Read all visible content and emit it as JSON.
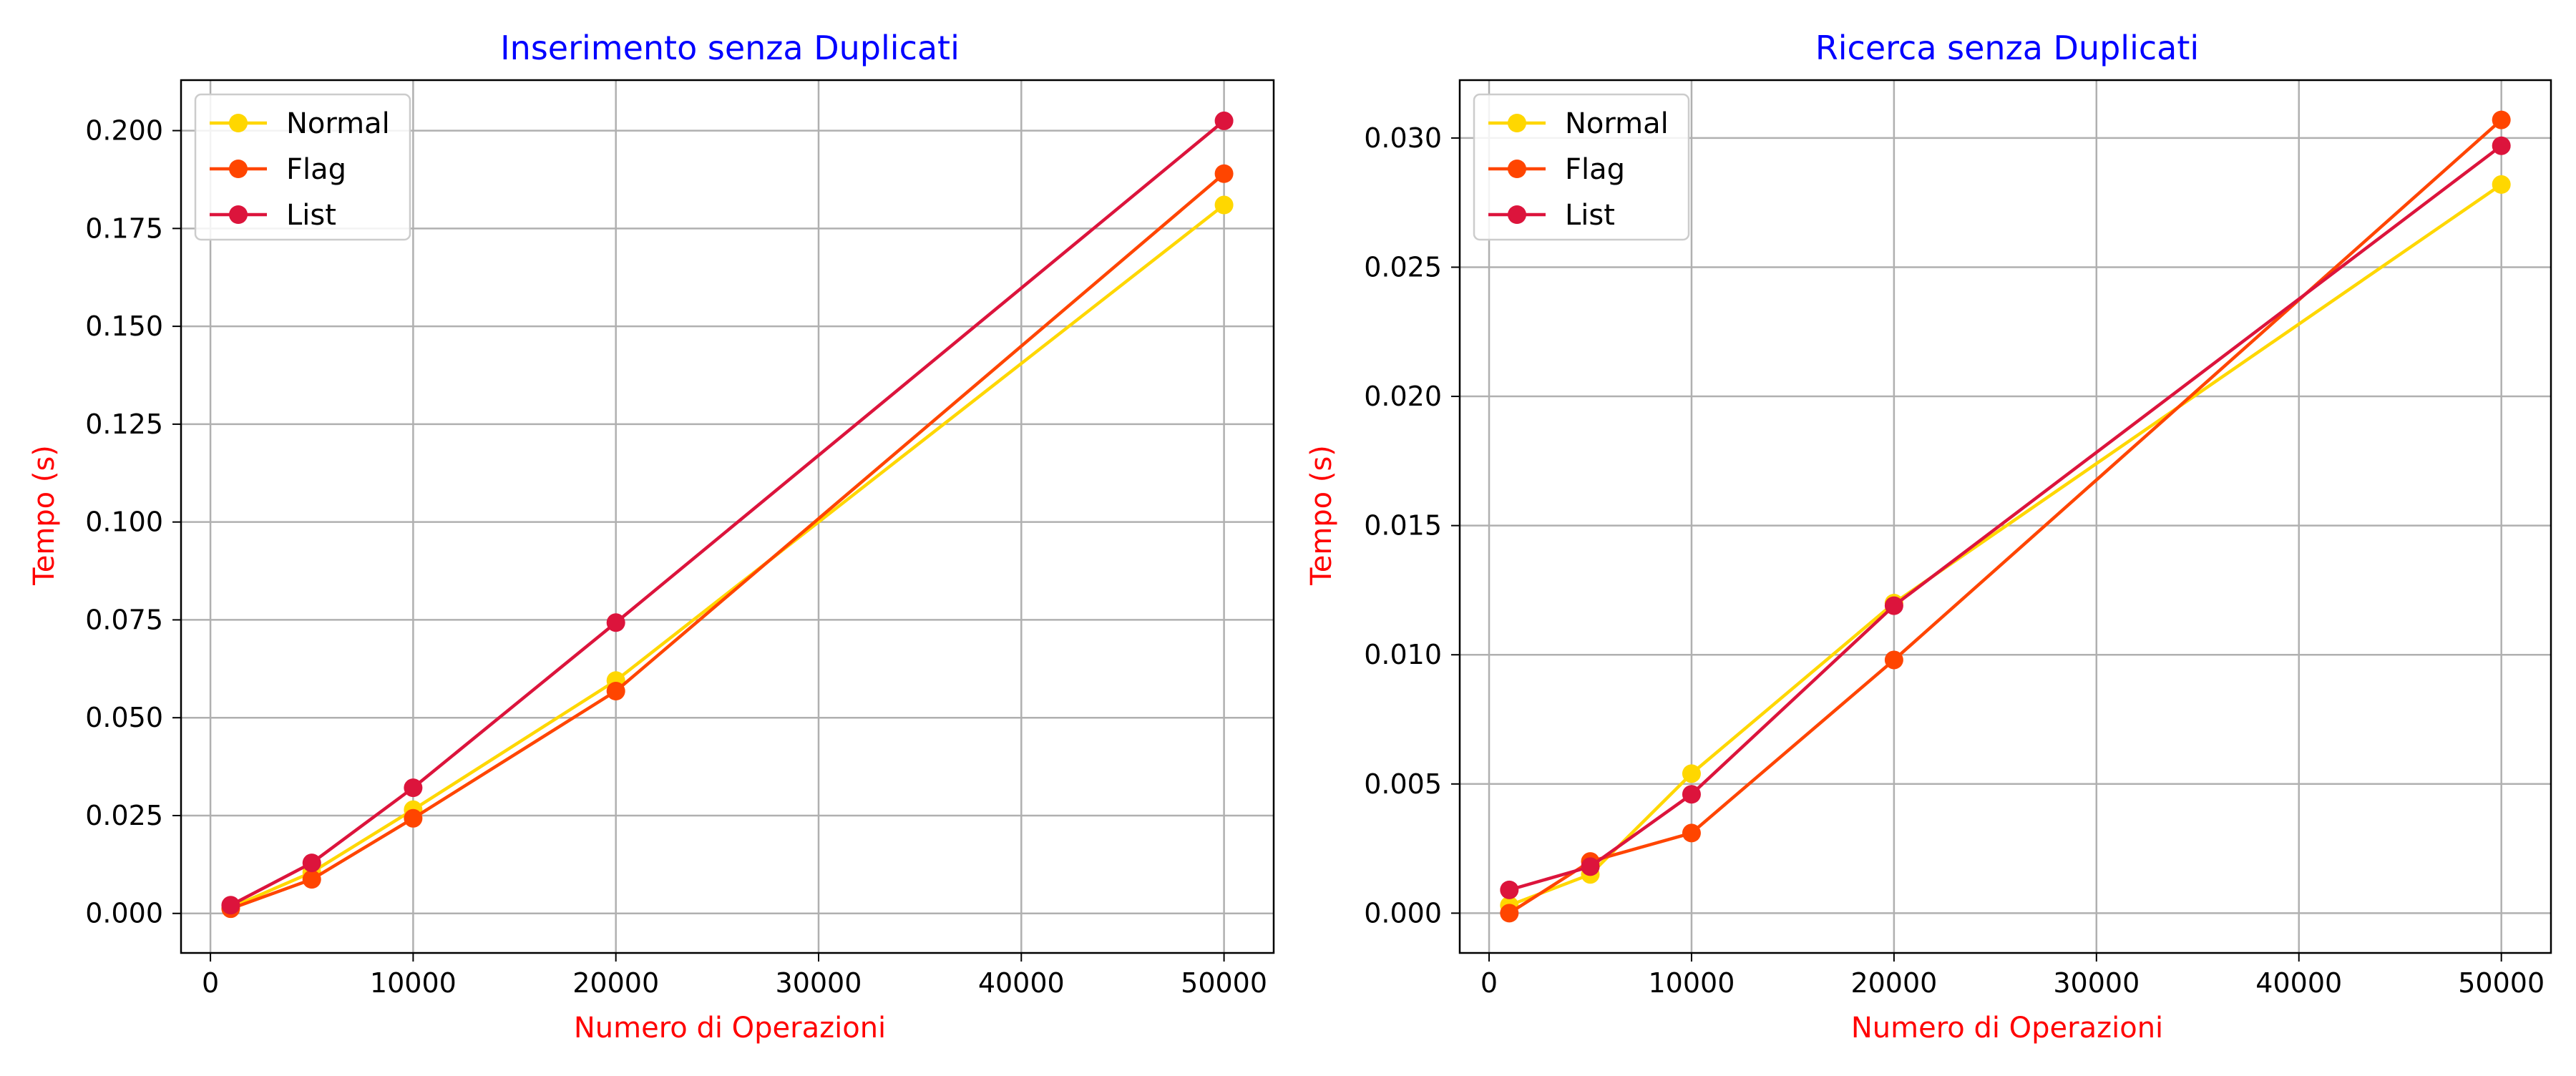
{
  "chart_data": [
    {
      "type": "line",
      "title": "Inserimento senza Duplicati",
      "xlabel": "Numero di Operazioni",
      "ylabel": "Tempo (s)",
      "x": [
        1000,
        5000,
        10000,
        20000,
        50000
      ],
      "xlim": [
        -1450,
        52450
      ],
      "ylim": [
        -0.0101,
        0.2129
      ],
      "xticks": [
        0,
        10000,
        20000,
        30000,
        40000,
        50000
      ],
      "yticks": [
        0.0,
        0.025,
        0.05,
        0.075,
        0.1,
        0.125,
        0.15,
        0.175,
        0.2
      ],
      "xtick_labels": [
        "0",
        "10000",
        "20000",
        "30000",
        "40000",
        "50000"
      ],
      "ytick_labels": [
        "0.000",
        "0.025",
        "0.050",
        "0.075",
        "0.100",
        "0.125",
        "0.150",
        "0.175",
        "0.200"
      ],
      "grid": true,
      "legend_position": "top-left",
      "series": [
        {
          "name": "Normal",
          "color": "#FFD700",
          "values": [
            0.0015,
            0.0105,
            0.0265,
            0.0595,
            0.181
          ]
        },
        {
          "name": "Flag",
          "color": "#FF4500",
          "values": [
            0.0012,
            0.0087,
            0.0243,
            0.0568,
            0.189
          ]
        },
        {
          "name": "List",
          "color": "#DC143C",
          "values": [
            0.0021,
            0.0129,
            0.0321,
            0.0743,
            0.2025
          ]
        }
      ],
      "title_color": "#0000FF",
      "label_color": "#FF0000"
    },
    {
      "type": "line",
      "title": "Ricerca senza Duplicati",
      "xlabel": "Numero di Operazioni",
      "ylabel": "Tempo (s)",
      "x": [
        1000,
        5000,
        10000,
        20000,
        50000
      ],
      "xlim": [
        -1450,
        52450
      ],
      "ylim": [
        -0.00154,
        0.03224
      ],
      "xticks": [
        0,
        10000,
        20000,
        30000,
        40000,
        50000
      ],
      "yticks": [
        0.0,
        0.005,
        0.01,
        0.015,
        0.02,
        0.025,
        0.03
      ],
      "xtick_labels": [
        "0",
        "10000",
        "20000",
        "30000",
        "40000",
        "50000"
      ],
      "ytick_labels": [
        "0.000",
        "0.005",
        "0.010",
        "0.015",
        "0.020",
        "0.025",
        "0.030"
      ],
      "grid": true,
      "legend_position": "top-left",
      "series": [
        {
          "name": "Normal",
          "color": "#FFD700",
          "values": [
            0.0003,
            0.0015,
            0.0054,
            0.012,
            0.0282
          ]
        },
        {
          "name": "Flag",
          "color": "#FF4500",
          "values": [
            0.0,
            0.002,
            0.0031,
            0.0098,
            0.0307
          ]
        },
        {
          "name": "List",
          "color": "#DC143C",
          "values": [
            0.0009,
            0.0018,
            0.0046,
            0.0119,
            0.0297
          ]
        }
      ],
      "title_color": "#0000FF",
      "label_color": "#FF0000"
    }
  ]
}
